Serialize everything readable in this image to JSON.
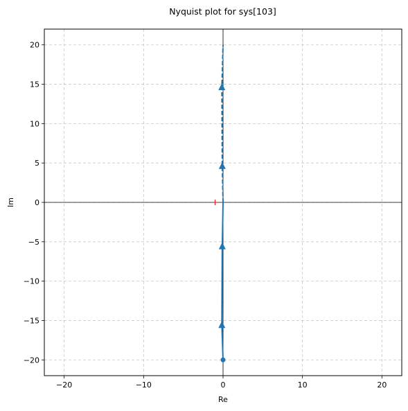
{
  "chart_data": {
    "type": "line",
    "title": "Nyquist plot for sys[103]",
    "xlabel": "Re",
    "ylabel": "Im",
    "xlim": [
      -22.5,
      22.5
    ],
    "ylim": [
      -22,
      22
    ],
    "xticks": [
      -20,
      -10,
      0,
      10,
      20
    ],
    "yticks": [
      -20,
      -15,
      -10,
      -5,
      0,
      5,
      10,
      15,
      20
    ],
    "xtick_labels": [
      "−20",
      "−10",
      "0",
      "10",
      "20"
    ],
    "ytick_labels": [
      "−20",
      "−15",
      "−10",
      "−5",
      "0",
      "5",
      "10",
      "15",
      "20"
    ],
    "grid": true,
    "series": [
      {
        "style": "solid",
        "color": "#1f77b4",
        "x": [
          0,
          -0.15,
          -0.1,
          0
        ],
        "y": [
          -20,
          -15.6,
          -5.6,
          0
        ],
        "arrows_at_y": [
          -15.6,
          -5.6
        ],
        "start_marker_y": -20
      },
      {
        "style": "dashed",
        "color": "#1f77b4",
        "x": [
          0,
          -0.1,
          -0.15,
          0
        ],
        "y": [
          0,
          4.6,
          14.6,
          20
        ],
        "arrows_at_y": [
          4.6,
          14.6
        ]
      }
    ],
    "critical_point": {
      "x": -1,
      "y": 0,
      "marker": "+",
      "color": "#d62728"
    }
  }
}
